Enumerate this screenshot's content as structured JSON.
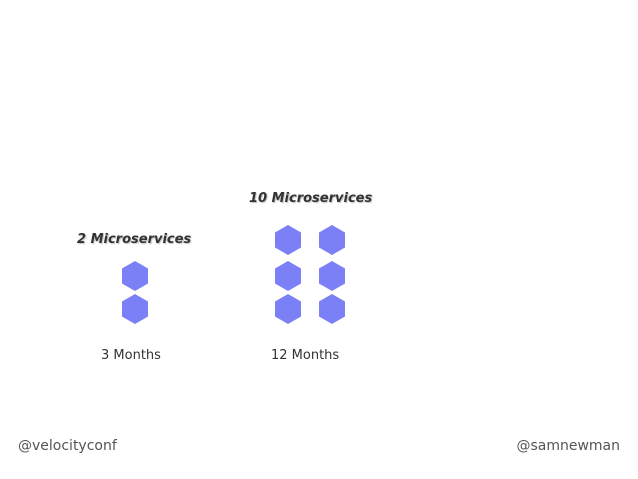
{
  "left_group": {
    "title": "2 Microservices",
    "duration": "3 Months",
    "hex_count": 2
  },
  "right_group": {
    "title": "10 Microservices",
    "duration": "12 Months",
    "hex_count": 6
  },
  "footer": {
    "left_handle": "@velocityconf",
    "right_handle": "@samnewman"
  },
  "colors": {
    "hexagon": "#7b80f7",
    "text": "#333333",
    "footer_text": "#555555",
    "background": "#ffffff"
  }
}
